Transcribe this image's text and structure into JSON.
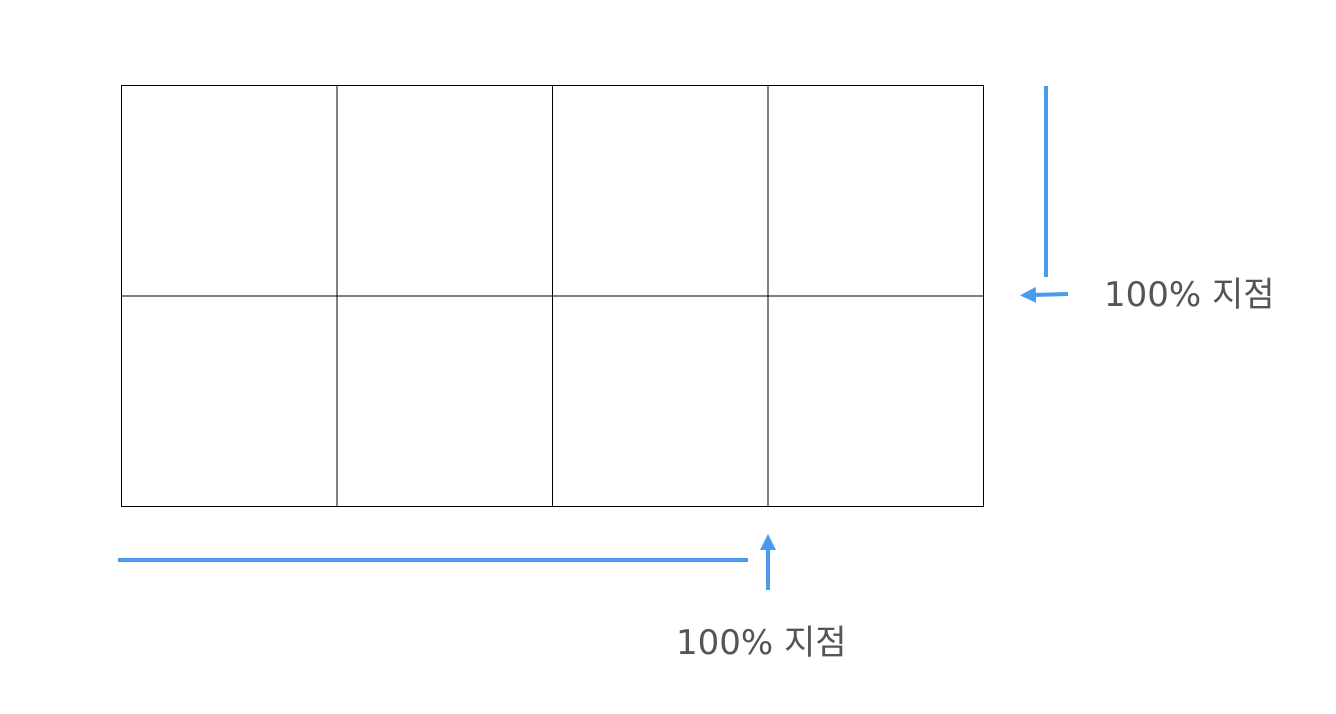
{
  "grid": {
    "rows": 2,
    "columns": 4
  },
  "markers": {
    "right": {
      "label": "100% 지점"
    },
    "bottom": {
      "label": "100% 지점"
    }
  },
  "colors": {
    "grid_line": "#000000",
    "marker": "#4A9AF0",
    "label_text": "#555555",
    "background": "#FFFFFF"
  }
}
